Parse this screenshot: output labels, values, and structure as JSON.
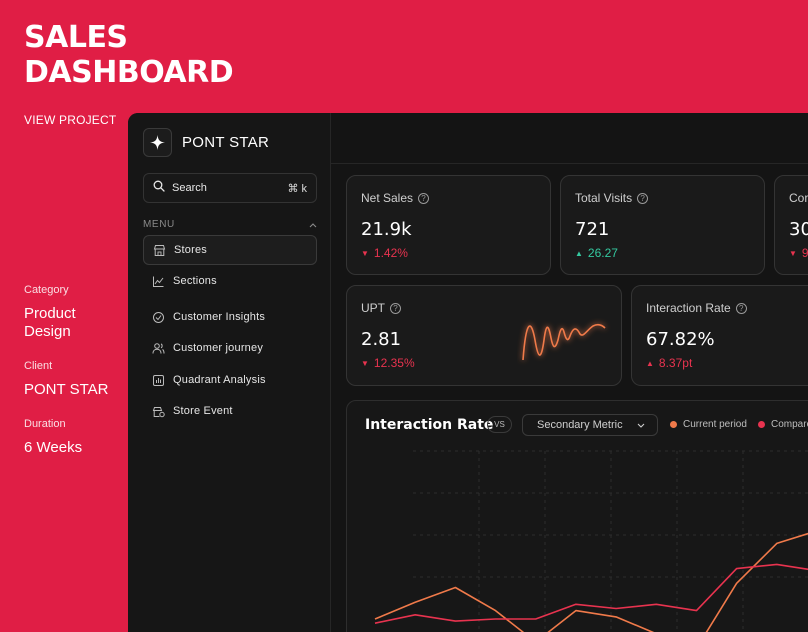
{
  "hero": {
    "title_line1": "SALES",
    "title_line2": "DASHBOARD",
    "view_project": "VIEW PROJECT"
  },
  "meta": {
    "category_label": "Category",
    "category_value_line1": "Product",
    "category_value_line2": "Design",
    "client_label": "Client",
    "client_value": "PONT STAR",
    "duration_label": "Duration",
    "duration_value": "6 Weeks"
  },
  "app": {
    "brand_name": "PONT STAR",
    "search": {
      "placeholder": "Search",
      "shortcut": "⌘ k"
    },
    "menu_label": "MENU",
    "nav": [
      {
        "label": "Stores",
        "icon": "store-icon"
      },
      {
        "label": "Sections",
        "icon": "line-chart-icon"
      },
      {
        "label": "Customer Insights",
        "icon": "insights-icon"
      },
      {
        "label": "Customer journey",
        "icon": "users-icon"
      },
      {
        "label": "Quadrant Analysis",
        "icon": "quadrant-chart-icon"
      },
      {
        "label": "Store Event",
        "icon": "store-event-icon"
      }
    ]
  },
  "cards": {
    "net_sales": {
      "title": "Net Sales",
      "value": "21.9k",
      "delta": "1.42%",
      "direction": "down"
    },
    "total_visits": {
      "title": "Total Visits",
      "value": "721",
      "delta": "26.27",
      "direction": "up"
    },
    "third": {
      "title": "Cor",
      "value": "30",
      "delta": "9",
      "direction": "down"
    },
    "upt": {
      "title": "UPT",
      "value": "2.81",
      "delta": "12.35%",
      "direction": "down"
    },
    "interaction_rate": {
      "title": "Interaction Rate",
      "value": "67.82%",
      "delta": "8.37pt",
      "direction": "up"
    }
  },
  "chart": {
    "title": "Interaction Rate",
    "vs_label": "VS",
    "select_value": "Secondary Metric",
    "legend_current": "Current period",
    "legend_compare": "Compare",
    "current_color": "#F07A4A",
    "compare_color": "#E8334F",
    "info_icon_glyph": "?",
    "chevron_glyph": "⌄"
  },
  "colors": {
    "brand_red": "#E01E45",
    "down": "#E8334F",
    "up": "#34C9A0"
  },
  "chart_data": [
    {
      "type": "line",
      "title": "Interaction Rate",
      "x": [
        0,
        1,
        2,
        3,
        4,
        5,
        6,
        7,
        8,
        9,
        10,
        11
      ],
      "series": [
        {
          "name": "Current period",
          "values": [
            20,
            28,
            35,
            24,
            9,
            24,
            21,
            13,
            6,
            37,
            56,
            62
          ]
        },
        {
          "name": "Compare",
          "values": [
            18,
            22,
            19,
            20,
            20,
            27,
            25,
            27,
            24,
            44,
            46,
            43
          ]
        }
      ],
      "ylim": [
        0,
        100
      ],
      "grid": true,
      "legend": "top-right"
    }
  ]
}
